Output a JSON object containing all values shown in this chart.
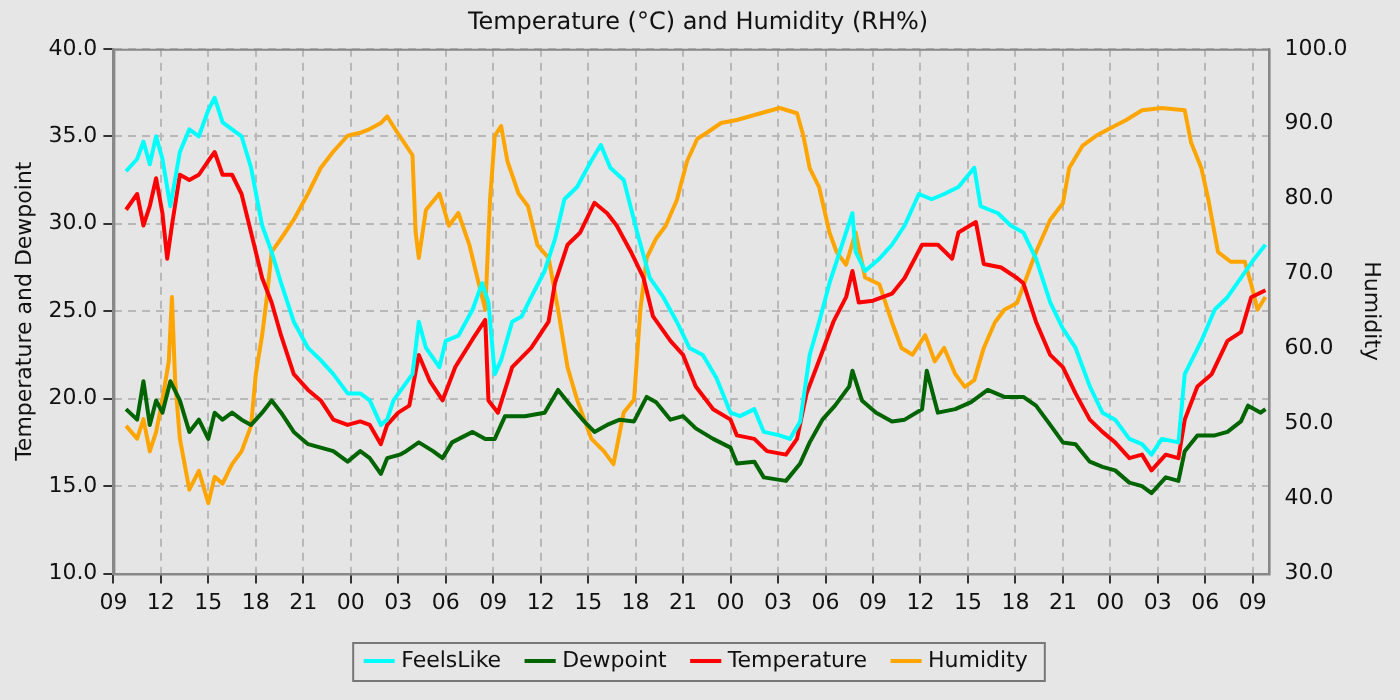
{
  "chart_data": {
    "type": "line",
    "title": "Temperature (°C) and Humidity (RH%)",
    "ylabel": "Temperature and Dewpoint",
    "y2label": "Humidity",
    "xlim": [
      9,
      82
    ],
    "xticks": [
      {
        "value": 9,
        "label": "09"
      },
      {
        "value": 12,
        "label": "12"
      },
      {
        "value": 15,
        "label": "15"
      },
      {
        "value": 18,
        "label": "18"
      },
      {
        "value": 21,
        "label": "21"
      },
      {
        "value": 24,
        "label": "00"
      },
      {
        "value": 27,
        "label": "03"
      },
      {
        "value": 30,
        "label": "06"
      },
      {
        "value": 33,
        "label": "09"
      },
      {
        "value": 36,
        "label": "12"
      },
      {
        "value": 39,
        "label": "15"
      },
      {
        "value": 42,
        "label": "18"
      },
      {
        "value": 45,
        "label": "21"
      },
      {
        "value": 48,
        "label": "00"
      },
      {
        "value": 51,
        "label": "03"
      },
      {
        "value": 54,
        "label": "06"
      },
      {
        "value": 57,
        "label": "09"
      },
      {
        "value": 60,
        "label": "12"
      },
      {
        "value": 63,
        "label": "15"
      },
      {
        "value": 66,
        "label": "18"
      },
      {
        "value": 69,
        "label": "21"
      },
      {
        "value": 72,
        "label": "00"
      },
      {
        "value": 75,
        "label": "03"
      },
      {
        "value": 78,
        "label": "06"
      },
      {
        "value": 81,
        "label": "09"
      }
    ],
    "ylim": [
      10,
      40
    ],
    "yticks": [
      {
        "value": 10,
        "label": "10.0"
      },
      {
        "value": 15,
        "label": "15.0"
      },
      {
        "value": 20,
        "label": "20.0"
      },
      {
        "value": 25,
        "label": "25.0"
      },
      {
        "value": 30,
        "label": "30.0"
      },
      {
        "value": 35,
        "label": "35.0"
      },
      {
        "value": 40,
        "label": "40.0"
      }
    ],
    "y2lim": [
      30,
      100
    ],
    "y2ticks": [
      {
        "value": 30,
        "label": "30.0"
      },
      {
        "value": 40,
        "label": "40.0"
      },
      {
        "value": 50,
        "label": "50.0"
      },
      {
        "value": 60,
        "label": "60.0"
      },
      {
        "value": 70,
        "label": "70.0"
      },
      {
        "value": 80,
        "label": "80.0"
      },
      {
        "value": 90,
        "label": "90.0"
      },
      {
        "value": 100,
        "label": "100.0"
      }
    ],
    "grid": true,
    "legend": "bottom",
    "marker": "none",
    "line_style": "solid",
    "series": [
      {
        "name": "FeelsLike",
        "color": "#00ffff",
        "x": [
          9.8,
          10.5,
          10.9,
          11.3,
          11.7,
          12.1,
          12.6,
          13.2,
          13.8,
          14.4,
          15.0,
          15.4,
          15.9,
          16.5,
          17.1,
          17.7,
          18.4,
          19.0,
          19.6,
          20.4,
          21.3,
          22.1,
          22.9,
          23.8,
          24.6,
          25.2,
          25.9,
          26.3,
          26.7,
          27.9,
          28.3,
          28.75,
          29.6,
          30.0,
          30.8,
          31.7,
          32.3,
          32.7,
          33.1,
          33.5,
          34.2,
          34.8,
          35.4,
          36.25,
          36.9,
          37.5,
          38.3,
          39.2,
          39.8,
          40.4,
          41.25,
          42.1,
          42.9,
          43.75,
          44.6,
          45.4,
          46.25,
          47.1,
          48.0,
          48.6,
          49.5,
          50.1,
          51.1,
          51.75,
          52.4,
          53.0,
          53.6,
          54.25,
          54.9,
          55.7,
          55.9,
          56.5,
          57.4,
          58.2,
          59.0,
          59.9,
          60.7,
          61.5,
          62.4,
          63.4,
          63.8,
          64.9,
          65.7,
          66.5,
          67.3,
          68.2,
          69.0,
          69.8,
          70.7,
          71.5,
          72.3,
          73.2,
          74.0,
          74.6,
          75.25,
          76.3,
          76.7,
          77.75,
          78.6,
          79.4,
          80.25,
          81.1,
          81.8
        ],
        "values": [
          33.0,
          33.7,
          34.7,
          33.4,
          35.0,
          33.7,
          31.0,
          34.1,
          35.4,
          35.0,
          36.5,
          37.2,
          35.8,
          35.4,
          35.0,
          33.2,
          29.9,
          28.4,
          26.6,
          24.4,
          22.9,
          22.2,
          21.4,
          20.3,
          20.3,
          19.9,
          18.5,
          18.8,
          19.9,
          21.4,
          24.4,
          22.9,
          21.8,
          23.3,
          23.6,
          25.1,
          26.6,
          25.5,
          21.4,
          22.2,
          24.4,
          24.7,
          25.8,
          27.3,
          29.1,
          31.4,
          32.1,
          33.6,
          34.5,
          33.2,
          32.5,
          29.5,
          26.9,
          25.8,
          24.4,
          22.9,
          22.5,
          21.2,
          19.2,
          19.0,
          19.4,
          18.1,
          17.9,
          17.7,
          18.7,
          22.5,
          24.4,
          26.6,
          28.4,
          30.6,
          28.4,
          27.3,
          28.0,
          28.8,
          29.9,
          31.7,
          31.4,
          31.7,
          32.1,
          33.2,
          31.0,
          30.6,
          29.9,
          29.5,
          28.0,
          25.5,
          24.0,
          22.9,
          20.7,
          19.2,
          18.8,
          17.7,
          17.4,
          16.8,
          17.7,
          17.5,
          21.4,
          23.3,
          25.1,
          25.8,
          26.9,
          28.0,
          28.8
        ]
      },
      {
        "name": "Dewpoint",
        "color": "#006400",
        "x": [
          9.8,
          10.5,
          10.9,
          11.3,
          11.7,
          12.1,
          12.6,
          13.2,
          13.8,
          14.4,
          15.0,
          15.4,
          15.9,
          16.5,
          17.1,
          17.7,
          18.4,
          19.0,
          19.6,
          20.4,
          21.3,
          22.1,
          22.9,
          23.8,
          24.6,
          25.2,
          25.9,
          26.3,
          27.1,
          27.5,
          28.3,
          29.2,
          29.8,
          30.4,
          31.7,
          32.5,
          33.1,
          33.75,
          35.0,
          36.25,
          37.1,
          37.9,
          38.75,
          39.4,
          40.2,
          41.0,
          41.9,
          42.7,
          43.3,
          44.2,
          45.0,
          45.8,
          46.9,
          48.0,
          48.4,
          49.5,
          50.1,
          51.5,
          52.4,
          53.0,
          53.8,
          54.6,
          55.5,
          55.7,
          56.3,
          57.2,
          58.2,
          59.0,
          60.1,
          60.4,
          61.1,
          62.2,
          63.2,
          64.25,
          65.3,
          66.5,
          67.3,
          68.2,
          69.0,
          69.8,
          70.7,
          71.5,
          72.3,
          73.2,
          74.0,
          74.6,
          75.5,
          76.3,
          76.7,
          77.5,
          78.6,
          79.4,
          80.25,
          80.7,
          81.5,
          81.8
        ],
        "values": [
          19.4,
          18.8,
          21.0,
          18.5,
          19.9,
          19.2,
          21.0,
          19.9,
          18.1,
          18.8,
          17.7,
          19.2,
          18.8,
          19.2,
          18.8,
          18.5,
          19.2,
          19.9,
          19.2,
          18.1,
          17.4,
          17.2,
          17.0,
          16.4,
          17.0,
          16.6,
          15.7,
          16.6,
          16.8,
          17.0,
          17.5,
          17.0,
          16.6,
          17.5,
          18.1,
          17.7,
          17.7,
          19.0,
          19.0,
          19.2,
          20.5,
          19.6,
          18.7,
          18.1,
          18.5,
          18.8,
          18.7,
          20.1,
          19.8,
          18.8,
          19.0,
          18.3,
          17.7,
          17.2,
          16.3,
          16.4,
          15.5,
          15.3,
          16.3,
          17.5,
          18.8,
          19.6,
          20.7,
          21.6,
          19.9,
          19.2,
          18.7,
          18.8,
          19.4,
          21.6,
          19.2,
          19.4,
          19.8,
          20.5,
          20.1,
          20.1,
          19.6,
          18.5,
          17.5,
          17.4,
          16.4,
          16.1,
          15.9,
          15.2,
          15.0,
          14.6,
          15.5,
          15.3,
          17.0,
          17.9,
          17.9,
          18.1,
          18.7,
          19.6,
          19.2,
          19.4
        ]
      },
      {
        "name": "Temperature",
        "color": "#ff0000",
        "x": [
          9.8,
          10.5,
          10.9,
          11.3,
          11.7,
          12.1,
          12.4,
          12.7,
          13.2,
          13.8,
          14.4,
          15.0,
          15.4,
          15.9,
          16.5,
          17.1,
          17.7,
          18.4,
          19.0,
          19.6,
          20.4,
          21.3,
          22.1,
          22.9,
          23.8,
          24.6,
          25.2,
          25.9,
          26.3,
          27.0,
          27.7,
          28.3,
          29.0,
          29.8,
          30.6,
          31.7,
          32.5,
          32.7,
          33.3,
          34.2,
          35.4,
          36.5,
          36.9,
          37.7,
          38.5,
          39.4,
          40.2,
          40.8,
          41.7,
          42.5,
          43.1,
          44.2,
          45.0,
          45.8,
          46.9,
          48.0,
          48.4,
          49.5,
          50.3,
          51.5,
          52.2,
          52.8,
          53.6,
          54.5,
          55.3,
          55.7,
          56.1,
          57.0,
          58.2,
          59.0,
          60.1,
          61.1,
          62.0,
          62.4,
          63.5,
          64.0,
          65.1,
          66.1,
          66.5,
          67.3,
          68.2,
          69.0,
          69.8,
          70.7,
          71.5,
          72.3,
          73.2,
          74.0,
          74.6,
          75.5,
          76.3,
          76.7,
          77.5,
          78.4,
          79.4,
          80.25,
          80.9,
          81.8
        ],
        "values": [
          30.8,
          31.7,
          29.9,
          31.0,
          32.6,
          30.6,
          28.0,
          29.9,
          32.8,
          32.5,
          32.8,
          33.6,
          34.1,
          32.8,
          32.8,
          31.7,
          29.5,
          26.9,
          25.5,
          23.6,
          21.4,
          20.5,
          19.9,
          18.8,
          18.5,
          18.7,
          18.5,
          17.4,
          18.5,
          19.2,
          19.6,
          22.5,
          21.0,
          19.9,
          21.8,
          23.4,
          24.5,
          19.9,
          19.2,
          21.8,
          22.9,
          24.4,
          26.6,
          28.8,
          29.5,
          31.2,
          30.6,
          29.9,
          28.4,
          26.9,
          24.7,
          23.3,
          22.5,
          20.7,
          19.4,
          18.8,
          17.9,
          17.7,
          17.0,
          16.8,
          17.7,
          20.3,
          22.2,
          24.4,
          25.8,
          27.3,
          25.5,
          25.6,
          26.0,
          26.9,
          28.8,
          28.8,
          28.0,
          29.5,
          30.1,
          27.7,
          27.5,
          26.9,
          26.6,
          24.4,
          22.5,
          21.8,
          20.3,
          18.8,
          18.1,
          17.5,
          16.6,
          16.8,
          15.9,
          16.8,
          16.6,
          18.8,
          20.7,
          21.4,
          23.3,
          23.8,
          25.8,
          26.2
        ]
      },
      {
        "name": "Humidity",
        "color": "#ffa500",
        "axis": "y2",
        "x": [
          9.8,
          10.5,
          10.9,
          11.3,
          11.7,
          12.1,
          12.5,
          12.7,
          12.9,
          13.2,
          13.8,
          14.4,
          15.0,
          15.4,
          15.9,
          16.5,
          17.1,
          17.7,
          18.0,
          18.4,
          18.7,
          19.0,
          19.6,
          20.4,
          21.3,
          22.1,
          22.9,
          23.8,
          24.6,
          25.2,
          25.9,
          26.3,
          26.8,
          27.9,
          28.1,
          28.3,
          28.75,
          29.6,
          30.2,
          30.8,
          31.5,
          32.1,
          32.5,
          32.8,
          33.1,
          33.5,
          33.9,
          34.6,
          35.2,
          35.8,
          36.5,
          37.1,
          37.7,
          38.3,
          39.2,
          40.0,
          40.6,
          41.25,
          41.9,
          42.3,
          42.7,
          43.3,
          43.9,
          44.6,
          45.25,
          45.9,
          46.5,
          47.4,
          48.4,
          49.9,
          51.1,
          52.2,
          52.6,
          53.0,
          53.6,
          54.25,
          54.7,
          55.3,
          55.9,
          56.5,
          57.4,
          58.2,
          58.8,
          59.5,
          60.3,
          60.9,
          61.5,
          62.2,
          62.8,
          63.4,
          64.0,
          64.7,
          65.3,
          66.1,
          67.3,
          68.2,
          69.0,
          69.4,
          70.25,
          71.1,
          71.9,
          73.0,
          74.0,
          75.25,
          76.7,
          77.1,
          77.75,
          78.2,
          78.8,
          79.6,
          80.5,
          80.9,
          81.3,
          81.8
        ],
        "values": [
          49.7,
          48.0,
          50.6,
          46.3,
          48.9,
          53.2,
          58.3,
          66.9,
          55.8,
          48.0,
          41.2,
          43.7,
          39.4,
          42.9,
          42.0,
          44.6,
          46.3,
          49.7,
          56.6,
          61.8,
          66.9,
          72.9,
          74.7,
          77.2,
          80.7,
          84.1,
          86.3,
          88.4,
          88.8,
          89.3,
          90.1,
          91.0,
          89.3,
          85.8,
          75.5,
          72.1,
          78.5,
          80.7,
          76.4,
          78.1,
          73.8,
          68.6,
          65.2,
          79.8,
          88.4,
          89.7,
          85.0,
          80.7,
          79.0,
          73.8,
          72.1,
          65.2,
          57.5,
          53.2,
          48.0,
          46.3,
          44.6,
          51.5,
          53.2,
          65.2,
          72.1,
          74.7,
          76.4,
          79.8,
          85.0,
          88.0,
          88.8,
          90.1,
          90.5,
          91.4,
          92.1,
          91.4,
          88.4,
          84.1,
          81.5,
          75.5,
          72.9,
          71.2,
          75.5,
          69.5,
          68.6,
          63.5,
          60.1,
          59.2,
          61.8,
          58.3,
          60.1,
          56.6,
          54.9,
          55.8,
          60.1,
          63.5,
          65.2,
          66.1,
          72.9,
          77.2,
          79.4,
          84.1,
          87.1,
          88.4,
          89.3,
          90.5,
          91.8,
          92.1,
          91.8,
          87.5,
          84.1,
          79.8,
          72.9,
          71.6,
          71.6,
          68.6,
          65.2,
          66.9
        ]
      }
    ]
  }
}
